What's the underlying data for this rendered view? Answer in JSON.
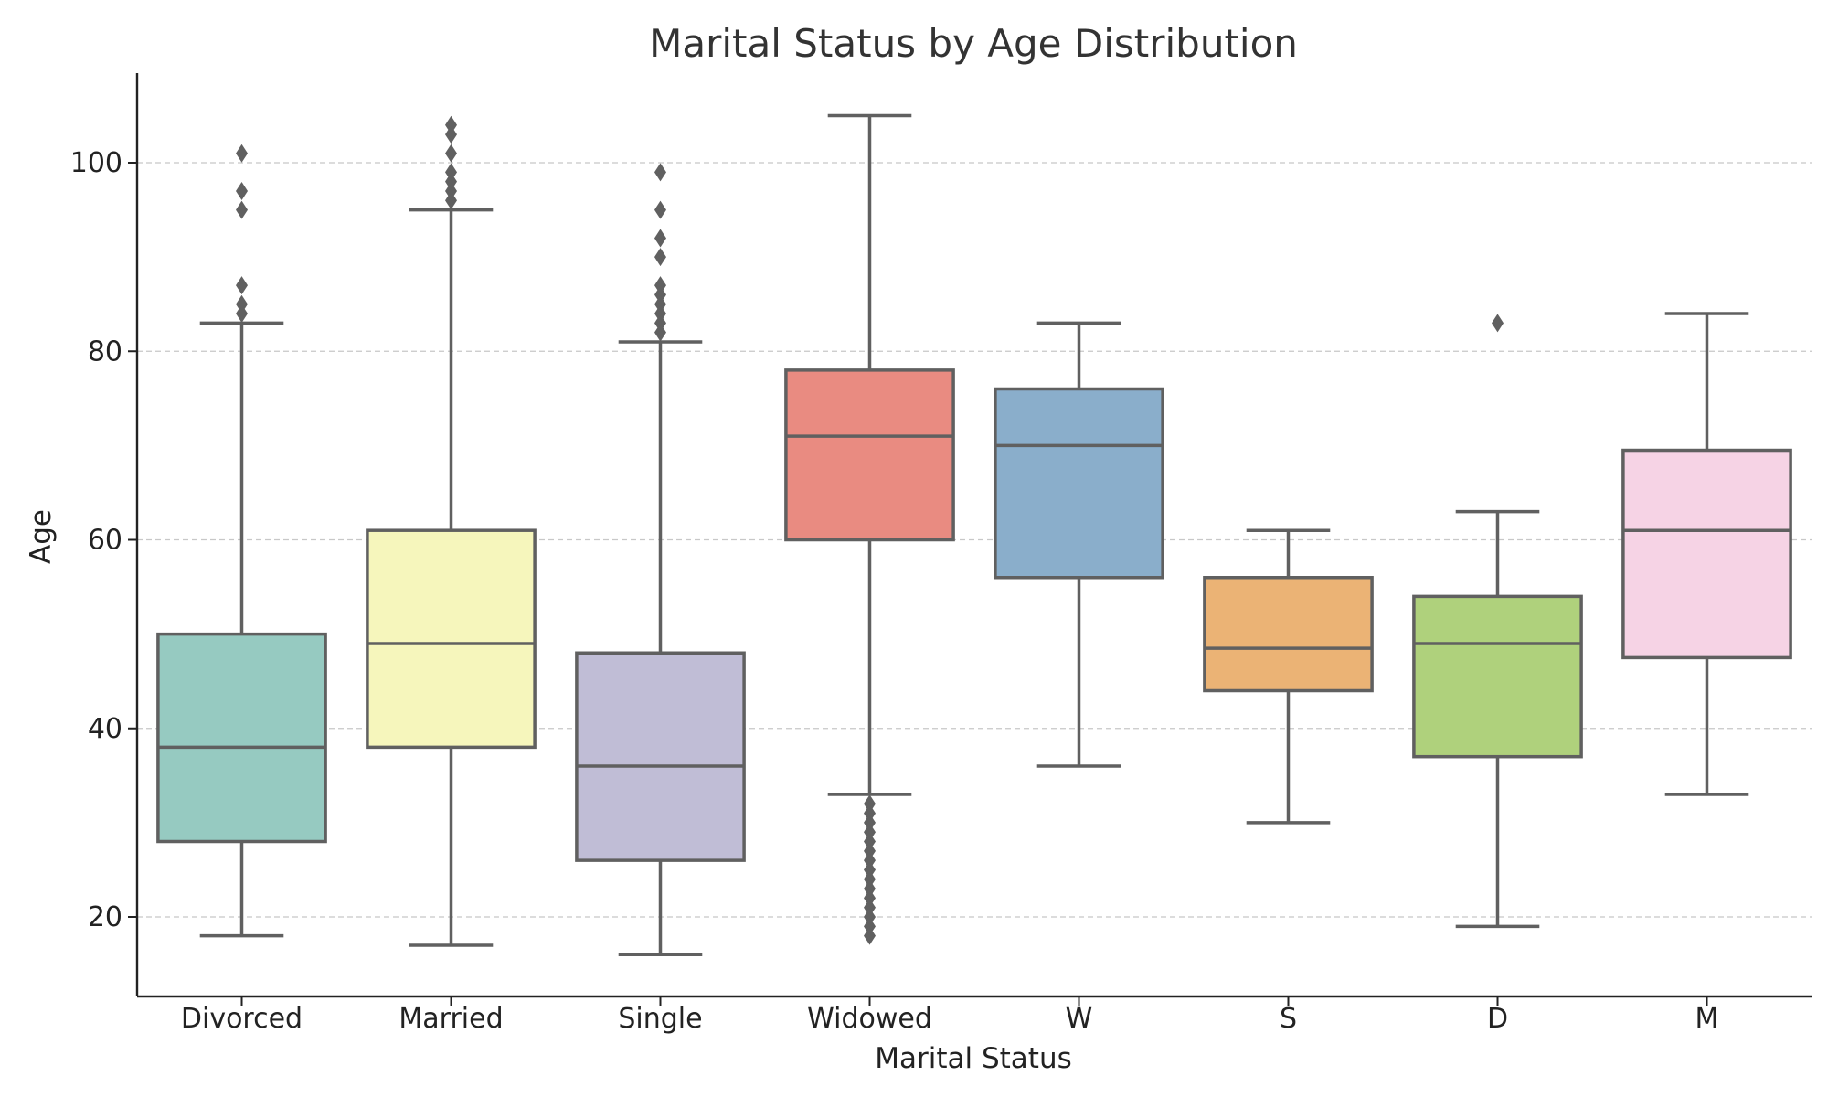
{
  "chart_data": {
    "type": "box",
    "title": "Marital Status by Age Distribution",
    "xlabel": "Marital Status",
    "ylabel": "Age",
    "ylim": [
      12,
      109
    ],
    "yticks": [
      20,
      40,
      60,
      80,
      100
    ],
    "grid": "horizontal dashed",
    "categories": [
      "Divorced",
      "Married",
      "Single",
      "Widowed",
      "W",
      "S",
      "D",
      "M"
    ],
    "colors": [
      "#96cac1",
      "#f6f6bc",
      "#c0bdd6",
      "#e98b81",
      "#8aaecb",
      "#ebb375",
      "#afd17c",
      "#f6d3e5"
    ],
    "boxes": [
      {
        "category": "Divorced",
        "whislo": 18,
        "q1": 28,
        "med": 38,
        "q3": 50,
        "whishi": 83,
        "fliers": [
          84,
          85,
          87,
          95,
          97,
          101
        ]
      },
      {
        "category": "Married",
        "whislo": 17,
        "q1": 38,
        "med": 49,
        "q3": 61,
        "whishi": 95,
        "fliers": [
          96,
          97,
          98,
          99,
          101,
          103,
          104
        ]
      },
      {
        "category": "Single",
        "whislo": 16,
        "q1": 26,
        "med": 36,
        "q3": 48,
        "whishi": 81,
        "fliers": [
          82,
          83,
          84,
          85,
          86,
          87,
          90,
          92,
          95,
          99
        ]
      },
      {
        "category": "Widowed",
        "whislo": 33,
        "q1": 60,
        "med": 71,
        "q3": 78,
        "whishi": 105,
        "fliers": [
          18,
          19,
          20,
          21,
          22,
          23,
          24,
          25,
          26,
          27,
          28,
          29,
          30,
          31,
          32
        ]
      },
      {
        "category": "W",
        "whislo": 36,
        "q1": 56,
        "med": 70,
        "q3": 76,
        "whishi": 83,
        "fliers": []
      },
      {
        "category": "S",
        "whislo": 30,
        "q1": 44,
        "med": 48.5,
        "q3": 56,
        "whishi": 61,
        "fliers": []
      },
      {
        "category": "D",
        "whislo": 19,
        "q1": 37,
        "med": 49,
        "q3": 54,
        "whishi": 63,
        "fliers": [
          83
        ]
      },
      {
        "category": "M",
        "whislo": 33,
        "q1": 47.5,
        "med": 61,
        "q3": 69.5,
        "whishi": 84,
        "fliers": []
      }
    ]
  }
}
